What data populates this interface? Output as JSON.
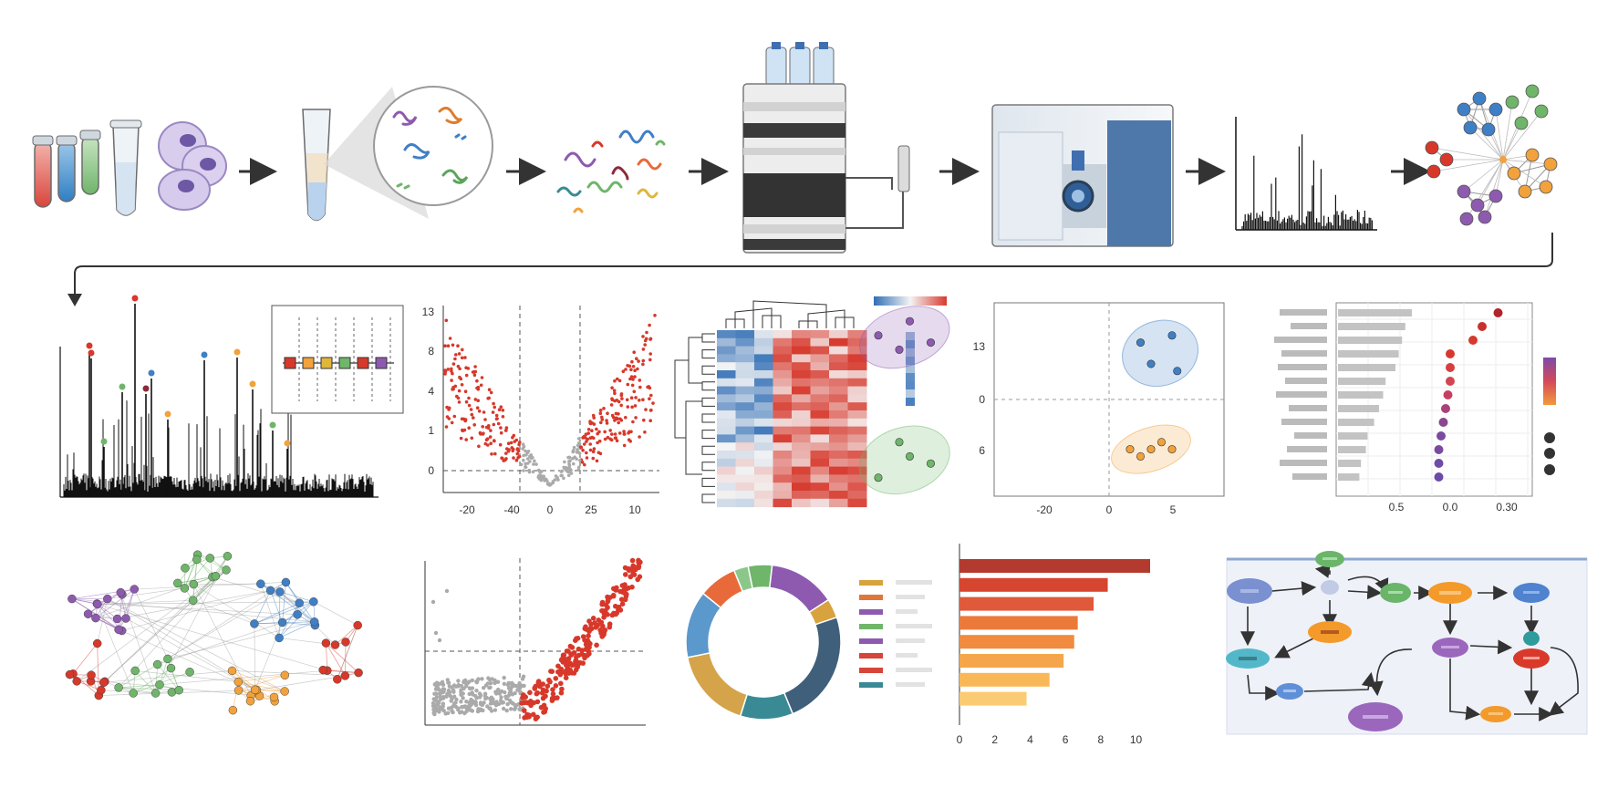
{
  "workflow": {
    "steps": [
      "sample-collection",
      "protein-extraction",
      "peptide-digestion",
      "liquid-chromatography",
      "mass-spectrometer",
      "mass-spectrum",
      "protein-network"
    ],
    "analyses": [
      "annotated-spectrum",
      "volcano-plot",
      "clustered-heatmap",
      "pca-plot",
      "enrichment-dotplot",
      "interaction-network",
      "correlation-scatter",
      "category-donut",
      "ranked-bar-chart",
      "pathway-diagram"
    ]
  },
  "colors": {
    "red": "#d7382a",
    "blue": "#3f7fc6",
    "green": "#6fb56a",
    "orange": "#f2a23c",
    "purple": "#8e5ab0",
    "grey": "#aaaaaa",
    "instrument_blue": "#4f78aa",
    "teal": "#3a8a95"
  },
  "chart_data": [
    {
      "type": "scatter",
      "name": "volcano",
      "x_ticks": [
        "-20",
        "-40",
        "0",
        "25",
        "10"
      ],
      "y_ticks": [
        "0",
        "1",
        "4",
        "8",
        "13"
      ],
      "grid": false
    },
    {
      "type": "heatmap",
      "name": "heatmap",
      "rows": 22,
      "columns": 8,
      "color_scale": [
        "#2f6db5",
        "#f4f4f4",
        "#d73a2e"
      ]
    },
    {
      "type": "scatter",
      "name": "pca",
      "x_ticks": [
        "-20",
        "0",
        "5"
      ],
      "y_ticks": [
        "13",
        "0",
        "6"
      ],
      "groups": [
        {
          "color": "#8e5ab0",
          "points": [
            [
              -22,
              9
            ],
            [
              -19,
              11
            ],
            [
              -17,
              8
            ],
            [
              -20,
              7
            ]
          ]
        },
        {
          "color": "#3f7fc6",
          "points": [
            [
              3,
              8
            ],
            [
              4,
              5
            ],
            [
              6,
              9
            ],
            [
              6.5,
              4
            ]
          ]
        },
        {
          "color": "#6fb56a",
          "points": [
            [
              -22,
              -11
            ],
            [
              -19,
              -8
            ],
            [
              -17,
              -9
            ],
            [
              -20,
              -6
            ]
          ]
        },
        {
          "color": "#f2a23c",
          "points": [
            [
              2,
              -7
            ],
            [
              3,
              -8
            ],
            [
              4,
              -7
            ],
            [
              5,
              -6
            ],
            [
              6,
              -7
            ]
          ]
        }
      ]
    },
    {
      "type": "bar",
      "name": "enrichment",
      "x_ticks": [
        "0.5",
        "0.0",
        "0.30"
      ],
      "bars": [
        0.9,
        0.82,
        0.78,
        0.74,
        0.7,
        0.58,
        0.55,
        0.5,
        0.44,
        0.36,
        0.34,
        0.28,
        0.26
      ],
      "dots": [
        0.42,
        0.28,
        0.2,
        0.0,
        0.0,
        0.0,
        -0.02,
        -0.04,
        -0.06,
        -0.08,
        -0.1,
        -0.1,
        -0.1
      ]
    },
    {
      "type": "scatter",
      "name": "correlation",
      "grid": false
    },
    {
      "type": "pie",
      "name": "donut",
      "values": [
        5,
        14,
        4,
        24,
        11,
        17,
        14,
        8,
        3
      ],
      "colors": [
        "#6fb56a",
        "#8e5ab0",
        "#d8a23f",
        "#3f5f7a",
        "#3a8a95",
        "#d4a34a",
        "#5b98cc",
        "#e86a3a",
        "#8cc78a"
      ]
    },
    {
      "type": "bar",
      "name": "ranked",
      "x_ticks": [
        "0",
        "2",
        "4",
        "6",
        "8",
        "10"
      ],
      "xlim": [
        0,
        10
      ],
      "values": [
        10.8,
        8.4,
        7.6,
        6.7,
        6.5,
        5.9,
        5.1,
        3.8
      ],
      "colors": [
        "#b33a2e",
        "#d6452f",
        "#e0593a",
        "#eb7a3a",
        "#f08b3f",
        "#f5a64a",
        "#f8b857",
        "#fbcb73"
      ]
    }
  ]
}
